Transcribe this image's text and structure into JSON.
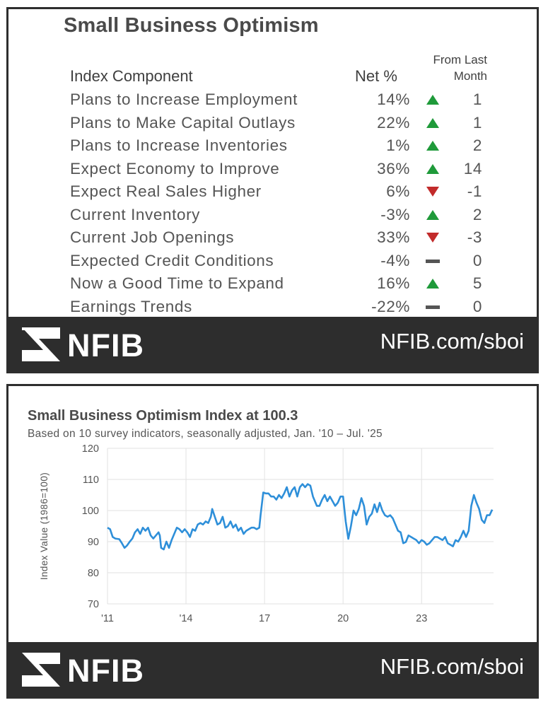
{
  "panel1": {
    "title": "Small Business Optimism",
    "header_component": "Index Component",
    "header_net": "Net %",
    "header_from_last_line1": "From Last",
    "header_from_last_line2": "Month",
    "rows": [
      {
        "name": "Plans to Increase Employment",
        "net": "14%",
        "dir": "up",
        "change": "1"
      },
      {
        "name": "Plans to Make Capital Outlays",
        "net": "22%",
        "dir": "up",
        "change": "1"
      },
      {
        "name": "Plans to Increase Inventories",
        "net": "1%",
        "dir": "up",
        "change": "2"
      },
      {
        "name": "Expect Economy to Improve",
        "net": "36%",
        "dir": "up",
        "change": "14"
      },
      {
        "name": "Expect Real Sales Higher",
        "net": "6%",
        "dir": "down",
        "change": "-1"
      },
      {
        "name": "Current Inventory",
        "net": "-3%",
        "dir": "up",
        "change": "2"
      },
      {
        "name": "Current Job Openings",
        "net": "33%",
        "dir": "down",
        "change": "-3"
      },
      {
        "name": "Expected Credit Conditions",
        "net": "-4%",
        "dir": "flat",
        "change": "0"
      },
      {
        "name": "Now a Good Time to Expand",
        "net": "16%",
        "dir": "up",
        "change": "5"
      },
      {
        "name": "Earnings Trends",
        "net": "-22%",
        "dir": "flat",
        "change": "0"
      }
    ]
  },
  "footer": {
    "logo_text": "NFIB",
    "url": "NFIB.com/sboi"
  },
  "colors": {
    "up": "#1f9a3a",
    "down": "#c22b2b",
    "line": "#2e8fd9",
    "footer": "#2d2d2d"
  },
  "chart_data": {
    "type": "line",
    "title": "Small Business Optimism Index at 100.3",
    "subtitle": "Based on 10 survey indicators, seasonally adjusted,  Jan. '10 – Jul. '25",
    "ylabel": "Index Value (1986=100)",
    "ylim": [
      70,
      120
    ],
    "yticks": [
      70,
      80,
      90,
      100,
      110,
      120
    ],
    "xlim": [
      2011.0,
      2025.75
    ],
    "xticks": [
      {
        "value": 2011,
        "label": "'11"
      },
      {
        "value": 2014,
        "label": "'14"
      },
      {
        "value": 2017,
        "label": "17"
      },
      {
        "value": 2020,
        "label": "20"
      },
      {
        "value": 2023,
        "label": "23"
      }
    ],
    "grid": true,
    "series": [
      {
        "values": [
          [
            2011.0,
            94.5
          ],
          [
            2011.1,
            94.0
          ],
          [
            2011.2,
            91.5
          ],
          [
            2011.3,
            91.0
          ],
          [
            2011.45,
            90.8
          ],
          [
            2011.55,
            89.5
          ],
          [
            2011.65,
            88.0
          ],
          [
            2011.75,
            88.8
          ],
          [
            2011.85,
            90.0
          ],
          [
            2011.95,
            91.0
          ],
          [
            2012.05,
            93.0
          ],
          [
            2012.15,
            94.0
          ],
          [
            2012.25,
            92.5
          ],
          [
            2012.35,
            94.5
          ],
          [
            2012.45,
            93.5
          ],
          [
            2012.55,
            94.5
          ],
          [
            2012.65,
            92.0
          ],
          [
            2012.75,
            91.0
          ],
          [
            2012.85,
            92.0
          ],
          [
            2012.95,
            93.0
          ],
          [
            2013.0,
            92.0
          ],
          [
            2013.05,
            88.0
          ],
          [
            2013.15,
            87.5
          ],
          [
            2013.25,
            90.0
          ],
          [
            2013.35,
            88.0
          ],
          [
            2013.45,
            90.5
          ],
          [
            2013.55,
            92.5
          ],
          [
            2013.65,
            94.5
          ],
          [
            2013.75,
            94.0
          ],
          [
            2013.85,
            93.0
          ],
          [
            2013.95,
            94.0
          ],
          [
            2014.05,
            93.0
          ],
          [
            2014.15,
            91.5
          ],
          [
            2014.25,
            94.0
          ],
          [
            2014.35,
            93.5
          ],
          [
            2014.45,
            95.5
          ],
          [
            2014.55,
            96.0
          ],
          [
            2014.65,
            95.5
          ],
          [
            2014.75,
            96.5
          ],
          [
            2014.85,
            96.0
          ],
          [
            2014.95,
            98.0
          ],
          [
            2015.0,
            100.5
          ],
          [
            2015.1,
            98.0
          ],
          [
            2015.2,
            95.5
          ],
          [
            2015.3,
            96.0
          ],
          [
            2015.4,
            98.0
          ],
          [
            2015.5,
            94.5
          ],
          [
            2015.6,
            95.0
          ],
          [
            2015.7,
            96.5
          ],
          [
            2015.8,
            94.5
          ],
          [
            2015.9,
            95.5
          ],
          [
            2016.0,
            93.5
          ],
          [
            2016.1,
            94.5
          ],
          [
            2016.2,
            92.5
          ],
          [
            2016.3,
            93.5
          ],
          [
            2016.4,
            94.0
          ],
          [
            2016.5,
            94.5
          ],
          [
            2016.6,
            94.5
          ],
          [
            2016.7,
            94.0
          ],
          [
            2016.8,
            94.5
          ],
          [
            2016.85,
            98.5
          ],
          [
            2016.95,
            105.8
          ],
          [
            2017.05,
            105.5
          ],
          [
            2017.15,
            105.5
          ],
          [
            2017.25,
            104.5
          ],
          [
            2017.35,
            104.5
          ],
          [
            2017.45,
            103.5
          ],
          [
            2017.55,
            105.0
          ],
          [
            2017.65,
            104.0
          ],
          [
            2017.75,
            105.5
          ],
          [
            2017.85,
            107.5
          ],
          [
            2017.95,
            104.5
          ],
          [
            2018.05,
            106.5
          ],
          [
            2018.15,
            107.5
          ],
          [
            2018.25,
            104.5
          ],
          [
            2018.35,
            107.5
          ],
          [
            2018.45,
            108.5
          ],
          [
            2018.55,
            107.5
          ],
          [
            2018.65,
            108.5
          ],
          [
            2018.75,
            108.0
          ],
          [
            2018.85,
            104.5
          ],
          [
            2018.95,
            102.5
          ],
          [
            2019.0,
            101.5
          ],
          [
            2019.1,
            101.5
          ],
          [
            2019.2,
            103.5
          ],
          [
            2019.3,
            105.0
          ],
          [
            2019.4,
            103.0
          ],
          [
            2019.5,
            104.5
          ],
          [
            2019.6,
            103.0
          ],
          [
            2019.7,
            101.5
          ],
          [
            2019.8,
            102.5
          ],
          [
            2019.9,
            104.5
          ],
          [
            2020.0,
            104.5
          ],
          [
            2020.1,
            96.5
          ],
          [
            2020.2,
            90.9
          ],
          [
            2020.3,
            95.0
          ],
          [
            2020.4,
            100.0
          ],
          [
            2020.5,
            98.5
          ],
          [
            2020.6,
            100.5
          ],
          [
            2020.7,
            104.0
          ],
          [
            2020.8,
            101.5
          ],
          [
            2020.9,
            95.5
          ],
          [
            2021.0,
            98.0
          ],
          [
            2021.1,
            99.0
          ],
          [
            2021.2,
            102.0
          ],
          [
            2021.3,
            99.5
          ],
          [
            2021.4,
            102.5
          ],
          [
            2021.5,
            100.0
          ],
          [
            2021.6,
            98.5
          ],
          [
            2021.7,
            98.0
          ],
          [
            2021.8,
            98.5
          ],
          [
            2021.9,
            97.5
          ],
          [
            2022.0,
            95.5
          ],
          [
            2022.1,
            93.5
          ],
          [
            2022.2,
            93.0
          ],
          [
            2022.3,
            89.5
          ],
          [
            2022.4,
            89.9
          ],
          [
            2022.5,
            92.0
          ],
          [
            2022.6,
            91.5
          ],
          [
            2022.7,
            91.0
          ],
          [
            2022.8,
            90.5
          ],
          [
            2022.9,
            89.5
          ],
          [
            2023.0,
            90.5
          ],
          [
            2023.1,
            90.0
          ],
          [
            2023.2,
            89.0
          ],
          [
            2023.3,
            89.5
          ],
          [
            2023.4,
            90.5
          ],
          [
            2023.5,
            91.5
          ],
          [
            2023.6,
            91.5
          ],
          [
            2023.7,
            91.0
          ],
          [
            2023.8,
            90.5
          ],
          [
            2023.9,
            91.5
          ],
          [
            2024.0,
            89.5
          ],
          [
            2024.1,
            89.0
          ],
          [
            2024.2,
            88.5
          ],
          [
            2024.3,
            90.5
          ],
          [
            2024.4,
            90.0
          ],
          [
            2024.5,
            91.5
          ],
          [
            2024.6,
            93.5
          ],
          [
            2024.7,
            91.5
          ],
          [
            2024.8,
            93.5
          ],
          [
            2024.9,
            101.5
          ],
          [
            2025.0,
            105.0
          ],
          [
            2025.1,
            102.5
          ],
          [
            2025.2,
            100.5
          ],
          [
            2025.3,
            97.0
          ],
          [
            2025.4,
            96.0
          ],
          [
            2025.5,
            98.5
          ],
          [
            2025.6,
            98.5
          ],
          [
            2025.7,
            100.3
          ]
        ]
      }
    ]
  }
}
